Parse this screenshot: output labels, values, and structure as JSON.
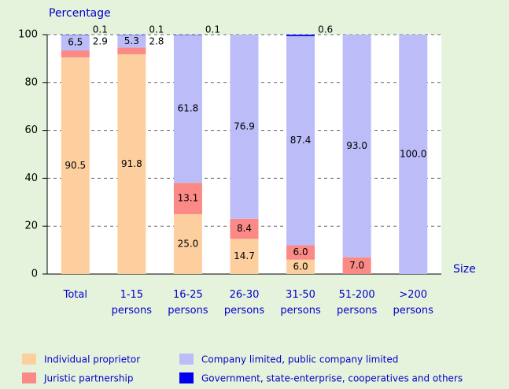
{
  "chart_data": {
    "type": "stacked_bar",
    "y_label": "Percentage",
    "x_label": "Size",
    "categories": [
      "Total",
      "1-15 persons",
      "16-25 persons",
      "26-30 persons",
      "31-50 persons",
      "51-200 persons",
      ">200 persons"
    ],
    "series": [
      {
        "name": "Individual proprietor",
        "color": "#fdcf9f",
        "values": [
          90.5,
          91.8,
          25.0,
          14.7,
          6.0,
          0,
          0
        ],
        "value_labels": [
          "90.5",
          "91.8",
          "25.0",
          "14.7",
          "6.0",
          null,
          null
        ]
      },
      {
        "name": "Juristic partnership",
        "color": "#fb8a86",
        "values": [
          2.9,
          2.8,
          13.1,
          8.4,
          6.0,
          7.0,
          0
        ],
        "value_labels": [
          "2.9",
          "2.8",
          "13.1",
          "8.4",
          "6.0",
          "7.0",
          null
        ]
      },
      {
        "name": "Company limited, public company limited",
        "color": "#bcbcf8",
        "values": [
          6.5,
          5.3,
          61.8,
          76.9,
          87.4,
          93.0,
          100.0
        ],
        "value_labels": [
          "6.5",
          "5.3",
          "61.8",
          "76.9",
          "87.4",
          "93.0",
          "100.0"
        ]
      },
      {
        "name": "Government, state-enterprise, cooperatives and others",
        "color": "#0000ee",
        "values": [
          0.1,
          0.1,
          0.1,
          0,
          0.6,
          0,
          0
        ],
        "value_labels": [
          "0.1",
          "0.1",
          "0.1",
          null,
          "0.6",
          null,
          null
        ]
      }
    ],
    "ylim": [
      0,
      100
    ],
    "yticks": [
      0,
      20,
      40,
      60,
      80,
      100
    ],
    "grid": true
  }
}
